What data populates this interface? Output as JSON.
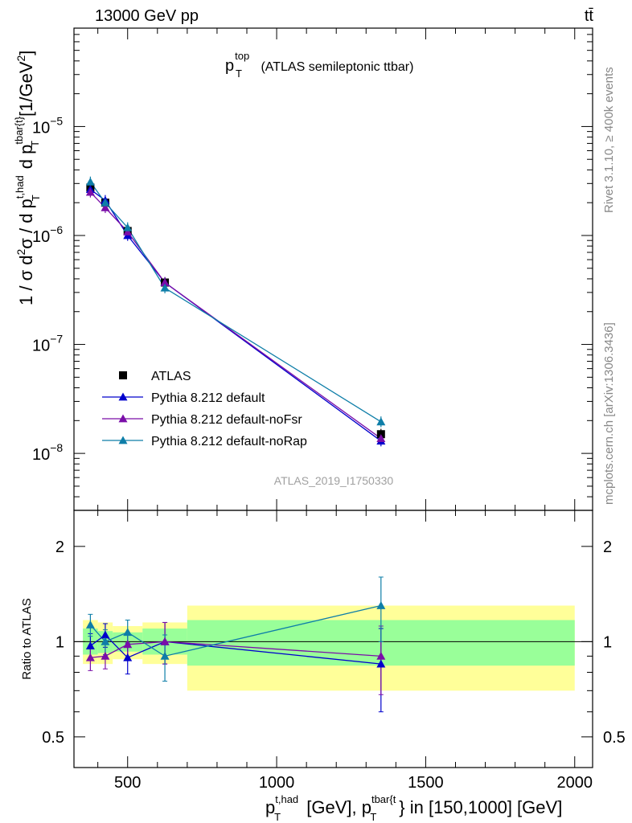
{
  "header": {
    "left": "13000 GeV pp",
    "right": "tt̄"
  },
  "side_labels": {
    "rivet": "Rivet 3.1.10, ≥ 400k events",
    "mcplots": "mcplots.cern.ch [arXiv:1306.3436]"
  },
  "chart_data": [
    {
      "type": "scatter",
      "panel": "main",
      "title": {
        "base": "p",
        "sup": "top",
        "sub": "T",
        "rest": " (ATLAS semileptonic ttbar)"
      },
      "ylabel": "1 / σ d²σ / d p_T^{t,had} d p_T^{tbar{t}} [1/GeV²]",
      "yscale": "log",
      "ylim": [
        3e-09,
        8e-05
      ],
      "xlim": [
        320,
        2060
      ],
      "yticks": [
        {
          "value": 1e-05,
          "mant": "10",
          "exp": "−5"
        },
        {
          "value": 1e-06,
          "mant": "10",
          "exp": "−6"
        },
        {
          "value": 1e-07,
          "mant": "10",
          "exp": "−7"
        },
        {
          "value": 1e-08,
          "mant": "10",
          "exp": "−8"
        }
      ],
      "watermark": "ATLAS_2019_I1750330",
      "legend_position": "bottom-left",
      "series": [
        {
          "name": "ATLAS",
          "color": "#000000",
          "marker": "square",
          "line": false,
          "x": [
            375,
            425,
            500,
            625,
            1350
          ],
          "y": [
            2.75e-06,
            2e-06,
            1.1e-06,
            3.7e-07,
            1.5e-08
          ]
        },
        {
          "name": "Pythia 8.212 default",
          "color": "#0000cc",
          "marker": "triangle",
          "line": true,
          "x": [
            375,
            425,
            500,
            625,
            1350
          ],
          "y": [
            2.65e-06,
            2.1e-06,
            1e-06,
            3.7e-07,
            1.3e-08
          ]
        },
        {
          "name": "Pythia 8.212 default-noFsr",
          "color": "#7a0ea8",
          "marker": "triangle",
          "line": true,
          "x": [
            375,
            425,
            500,
            625,
            1350
          ],
          "y": [
            2.5e-06,
            1.8e-06,
            1.08e-06,
            3.7e-07,
            1.37e-08
          ]
        },
        {
          "name": "Pythia 8.212 default-noRap",
          "color": "#0e7ea8",
          "marker": "triangle",
          "line": true,
          "x": [
            375,
            425,
            500,
            625,
            1350
          ],
          "y": [
            3.1e-06,
            2e-06,
            1.18e-06,
            3.3e-07,
            1.95e-08
          ]
        }
      ]
    },
    {
      "type": "scatter",
      "panel": "ratio",
      "ylabel": "Ratio to ATLAS",
      "xlabel": "p_T^{t,had} [GeV], p_T^{tbar{t}} in [150,1000] [GeV]",
      "yscale": "log",
      "ylim": [
        0.4,
        2.6
      ],
      "yticks": [
        {
          "value": 0.5,
          "label": "0.5"
        },
        {
          "value": 1,
          "label": "1"
        },
        {
          "value": 2,
          "label": "2"
        }
      ],
      "xticks": [
        {
          "value": 500,
          "label": "500"
        },
        {
          "value": 1000,
          "label": "1000"
        },
        {
          "value": 1500,
          "label": "1500"
        },
        {
          "value": 2000,
          "label": "2000"
        }
      ],
      "bands": [
        {
          "x0": 350,
          "x1": 400,
          "lo_outer": 0.85,
          "hi_outer": 1.17,
          "lo_inner": 0.91,
          "hi_inner": 1.1
        },
        {
          "x0": 400,
          "x1": 450,
          "lo_outer": 0.85,
          "hi_outer": 1.15,
          "lo_inner": 0.92,
          "hi_inner": 1.08
        },
        {
          "x0": 450,
          "x1": 550,
          "lo_outer": 0.88,
          "hi_outer": 1.12,
          "lo_inner": 0.93,
          "hi_inner": 1.07
        },
        {
          "x0": 550,
          "x1": 700,
          "lo_outer": 0.85,
          "hi_outer": 1.15,
          "lo_inner": 0.91,
          "hi_inner": 1.1
        },
        {
          "x0": 700,
          "x1": 2000,
          "lo_outer": 0.7,
          "hi_outer": 1.3,
          "lo_inner": 0.84,
          "hi_inner": 1.17
        }
      ],
      "series": [
        {
          "name": "Pythia 8.212 default",
          "color": "#0000cc",
          "x": [
            375,
            425,
            500,
            625,
            1350
          ],
          "y": [
            0.97,
            1.05,
            0.89,
            1.0,
            0.85
          ],
          "err": [
            0.09,
            0.09,
            0.1,
            0.15,
            0.25
          ]
        },
        {
          "name": "Pythia 8.212 default-noFsr",
          "color": "#7a0ea8",
          "x": [
            375,
            425,
            500,
            625,
            1350
          ],
          "y": [
            0.89,
            0.9,
            0.98,
            1.0,
            0.9
          ],
          "err": [
            0.08,
            0.08,
            0.09,
            0.15,
            0.22
          ]
        },
        {
          "name": "Pythia 8.212 default-noRap",
          "color": "#0e7ea8",
          "x": [
            375,
            425,
            500,
            625,
            1350
          ],
          "y": [
            1.13,
            1.0,
            1.07,
            0.9,
            1.3
          ],
          "err": [
            0.09,
            0.09,
            0.1,
            0.15,
            0.3
          ]
        }
      ]
    }
  ]
}
